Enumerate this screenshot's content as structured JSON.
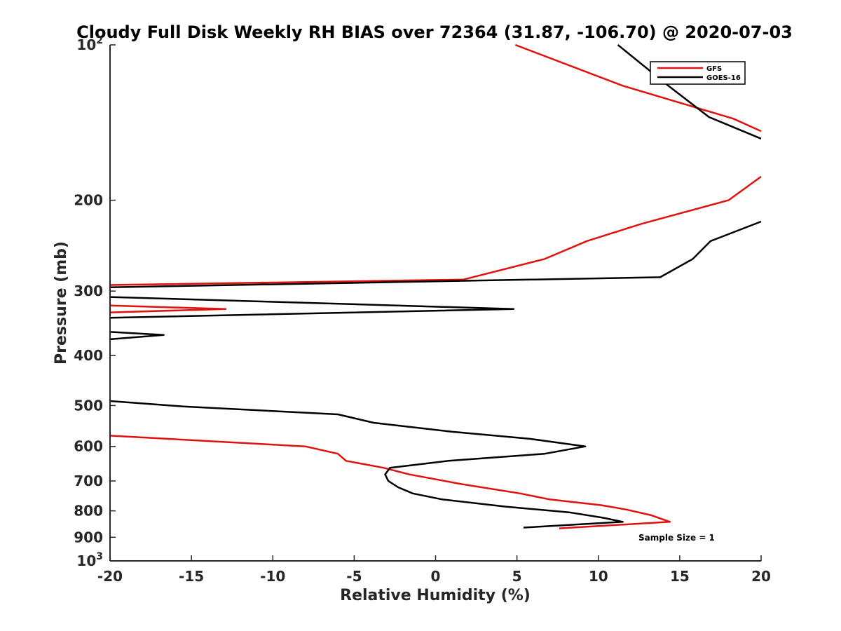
{
  "chart_data": {
    "type": "line",
    "title": "Cloudy Full Disk Weekly RH BIAS over 72364 (31.87, -106.70) @ 2020-07-03",
    "xlabel": "Relative Humidity (%)",
    "ylabel": "Pressure (mb)",
    "xlim": [
      -20,
      20
    ],
    "ylim": [
      100,
      1000
    ],
    "y_scale": "log",
    "y_reversed": true,
    "grid": false,
    "legend_position": "top-right",
    "xticks": [
      "-20",
      "-15",
      "-10",
      "-5",
      "0",
      "5",
      "10",
      "15",
      "20"
    ],
    "yticks": [
      {
        "value": 100,
        "base": "10",
        "exp": "2"
      },
      {
        "value": 200,
        "label": "200"
      },
      {
        "value": 300,
        "label": "300"
      },
      {
        "value": 400,
        "label": "400"
      },
      {
        "value": 500,
        "label": "500"
      },
      {
        "value": 600,
        "label": "600"
      },
      {
        "value": 700,
        "label": "700"
      },
      {
        "value": 800,
        "label": "800"
      },
      {
        "value": 900,
        "label": "900"
      },
      {
        "value": 1000,
        "base": "10",
        "exp": "3"
      }
    ],
    "series": [
      {
        "name": "GFS",
        "color": "#e0120f",
        "segments": [
          [
            [
              4.9,
              100
            ],
            [
              11.5,
              120
            ],
            [
              18.3,
              139
            ],
            [
              20,
              147
            ]
          ],
          [
            [
              20,
              180
            ],
            [
              18.0,
              200
            ],
            [
              12.7,
              222
            ],
            [
              9.3,
              240
            ],
            [
              6.7,
              260
            ],
            [
              1.7,
              285
            ],
            [
              -20,
              292
            ]
          ],
          [
            [
              -20,
              320
            ],
            [
              -12.9,
              325
            ],
            [
              -20,
              330
            ]
          ],
          [
            [
              -20,
              572
            ],
            [
              -8,
              600
            ],
            [
              -6,
              620
            ],
            [
              -5.5,
              640
            ],
            [
              -3.2,
              660
            ],
            [
              -1.6,
              680
            ],
            [
              1.6,
              710
            ],
            [
              5.2,
              740
            ],
            [
              7.0,
              760
            ],
            [
              10.2,
              780
            ],
            [
              11.7,
              795
            ],
            [
              13.2,
              815
            ],
            [
              14.4,
              840
            ],
            [
              7.6,
              865
            ]
          ]
        ]
      },
      {
        "name": "GOES-16",
        "color": "#000000",
        "segments": [
          [
            [
              11.2,
              100
            ],
            [
              14.3,
              120
            ],
            [
              16.8,
              138
            ],
            [
              20,
              152
            ]
          ],
          [
            [
              20,
              220
            ],
            [
              16.9,
              240
            ],
            [
              15.8,
              260
            ],
            [
              13.8,
              282
            ],
            [
              -20,
              295
            ]
          ],
          [
            [
              -20,
              308
            ],
            [
              4.8,
              325
            ],
            [
              -20,
              338
            ]
          ],
          [
            [
              -20,
              360
            ],
            [
              -16.7,
              365
            ],
            [
              -20,
              372
            ]
          ],
          [
            [
              -20,
              490
            ],
            [
              -15.5,
              502
            ],
            [
              -6.0,
              520
            ],
            [
              -3.8,
              540
            ],
            [
              1,
              562
            ],
            [
              5.8,
              580
            ],
            [
              9.2,
              600
            ],
            [
              6.7,
              620
            ],
            [
              0.8,
              640
            ],
            [
              -2.8,
              660
            ],
            [
              -3.1,
              680
            ],
            [
              -2.9,
              700
            ],
            [
              -2.3,
              720
            ],
            [
              -1.4,
              740
            ],
            [
              0.4,
              760
            ],
            [
              4.3,
              785
            ],
            [
              8.2,
              805
            ],
            [
              10.3,
              825
            ],
            [
              11.5,
              840
            ],
            [
              5.4,
              862
            ]
          ]
        ]
      }
    ],
    "annotation": "Sample Size = 1"
  }
}
